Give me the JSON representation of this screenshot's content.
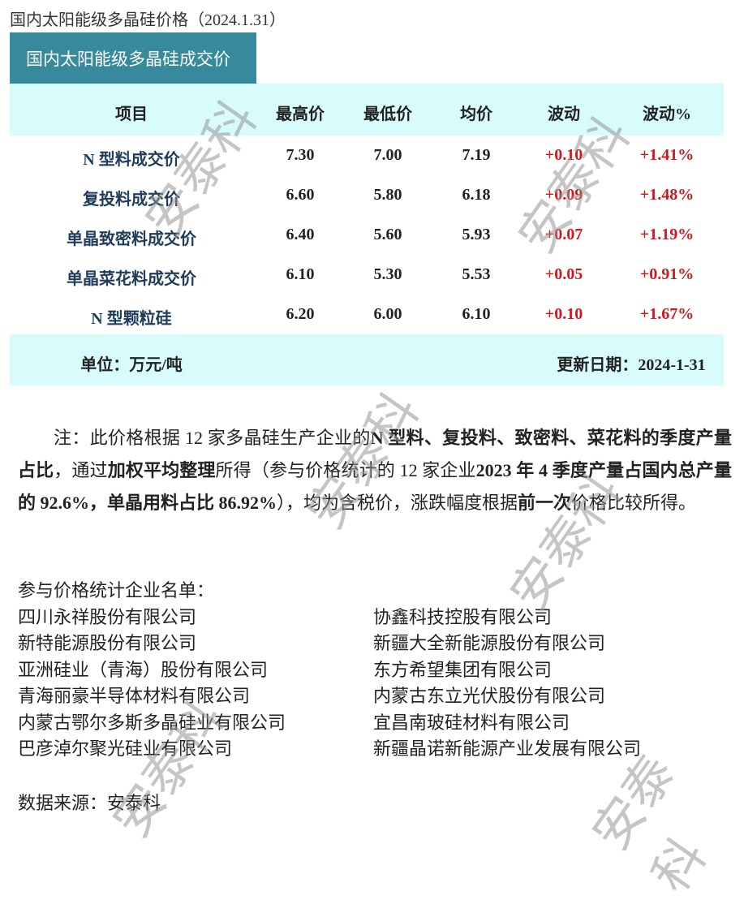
{
  "title": "国内太阳能级多晶硅价格（2024.1.31）",
  "tab": "国内太阳能级多晶硅成交价",
  "headers": [
    "项目",
    "最高价",
    "最低价",
    "均价",
    "波动",
    "波动%"
  ],
  "rows": [
    {
      "name": "N 型料成交价",
      "high": "7.30",
      "low": "7.00",
      "avg": "7.19",
      "chg": "+0.10",
      "pct": "+1.41%"
    },
    {
      "name": "复投料成交价",
      "high": "6.60",
      "low": "5.80",
      "avg": "6.18",
      "chg": "+0.09",
      "pct": "+1.48%"
    },
    {
      "name": "单晶致密料成交价",
      "high": "6.40",
      "low": "5.60",
      "avg": "5.93",
      "chg": "+0.07",
      "pct": "+1.19%"
    },
    {
      "name": "单晶菜花料成交价",
      "high": "6.10",
      "low": "5.30",
      "avg": "5.53",
      "chg": "+0.05",
      "pct": "+0.91%"
    },
    {
      "name": "N 型颗粒硅",
      "high": "6.20",
      "low": "6.00",
      "avg": "6.10",
      "chg": "+0.10",
      "pct": "+1.67%"
    }
  ],
  "footer": {
    "unit": "单位：万元/吨",
    "date": "更新日期：2024-1-31"
  },
  "note": [
    "注：此价格根据 12 家多晶硅生产企业的",
    "N 型料、复投料、致密料、菜花料的季度产量占比",
    "，通过",
    "加权平均整理",
    "所得（参与价格统计的 12 家企业",
    "2023 年 4 季度产量占国内总产量的 92.6%，单晶用料占比 86.92%",
    "），均为含税价，涨跌幅度根据",
    "前一次",
    "价格比较所得。"
  ],
  "list_title": "参与价格统计企业名单：",
  "companies_left": [
    "四川永祥股份有限公司",
    "新特能源股份有限公司",
    "亚洲硅业（青海）股份有限公司",
    "青海丽豪半导体材料有限公司",
    "内蒙古鄂尔多斯多晶硅业有限公司",
    "巴彦淖尔聚光硅业有限公司"
  ],
  "companies_right": [
    "协鑫科技控股有限公司",
    "新疆大全新能源股份有限公司",
    "东方希望集团有限公司",
    "内蒙古东立光伏股份有限公司",
    "宜昌南玻硅材料有限公司",
    "新疆晶诺新能源产业发展有限公司"
  ],
  "source": "数据来源：安泰科",
  "watermark": "安泰科",
  "colors": {
    "tab": "#368a9c",
    "band": "#d8fbfb",
    "red": "#d0191f",
    "name": "#1f3c5a"
  }
}
